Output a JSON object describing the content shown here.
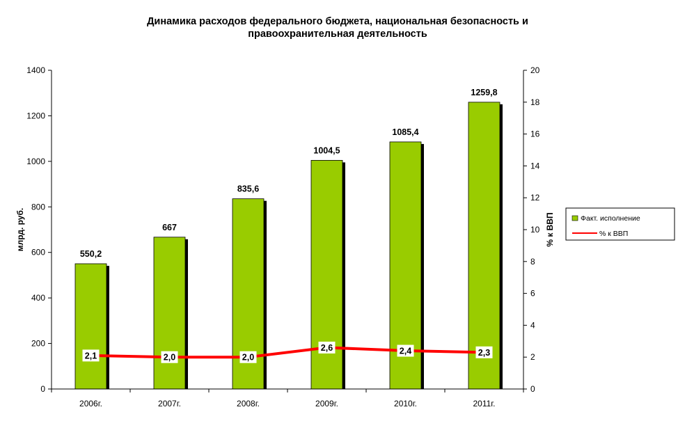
{
  "chart_data": {
    "type": "bar",
    "title_line1": "Динамика расходов федерального бюджета, национальная безопасность и",
    "title_line2": "правоохранительная деятельность",
    "categories": [
      "2006г.",
      "2007г.",
      "2008г.",
      "2009г.",
      "2010г.",
      "2011г."
    ],
    "series": [
      {
        "name": "Факт. исполнение",
        "axis": "left",
        "values": [
          550.2,
          667,
          835.6,
          1004.5,
          1085.4,
          1259.8
        ],
        "labels": [
          "550,2",
          "667",
          "835,6",
          "1004,5",
          "1085,4",
          "1259,8"
        ],
        "color": "#99cc00"
      },
      {
        "name": "% к ВВП",
        "axis": "right",
        "type": "line",
        "values": [
          2.1,
          2.0,
          2.0,
          2.6,
          2.4,
          2.3
        ],
        "labels": [
          "2,1",
          "2,0",
          "2,0",
          "2,6",
          "2,4",
          "2,3"
        ],
        "color": "#ff0000"
      }
    ],
    "ylabel": "млрд. руб.",
    "ylabel_right": "% к ВВП",
    "ylim": [
      0,
      1400
    ],
    "ylim_right": [
      0,
      20
    ],
    "yticks": [
      0,
      200,
      400,
      600,
      800,
      1000,
      1200,
      1400
    ],
    "yticks_right": [
      0,
      2,
      4,
      6,
      8,
      10,
      12,
      14,
      16,
      18,
      20
    ],
    "grid": false,
    "legend_position": "right"
  }
}
